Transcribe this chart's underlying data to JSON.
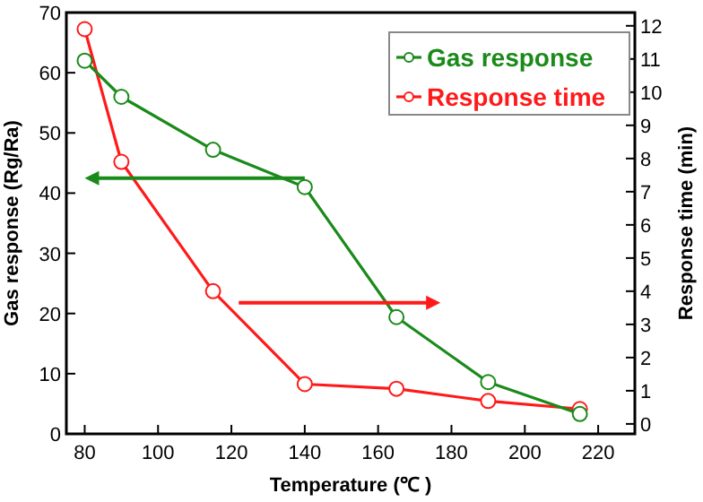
{
  "chart_data": {
    "type": "line",
    "xlabel": "Temperature (℃ )",
    "ylabel": "Gas response (Rg/Ra)",
    "y2label": "Response time (min)",
    "x": [
      80,
      90,
      115,
      140,
      165,
      190,
      215
    ],
    "series": [
      {
        "name": "Gas response",
        "color": "#1a8a1a",
        "values": [
          62,
          56,
          47.2,
          41,
          19.4,
          8.6,
          3.3
        ]
      },
      {
        "name": "Response time",
        "color": "#ff1a1a",
        "axis": "y2",
        "values": [
          11.9,
          7.9,
          4.0,
          1.2,
          1.06,
          0.69,
          0.45
        ]
      }
    ],
    "xlim": [
      75,
      230
    ],
    "xticks": [
      80,
      100,
      120,
      140,
      160,
      180,
      200,
      220
    ],
    "ylim": [
      0,
      70
    ],
    "yticks": [
      0,
      10,
      20,
      30,
      40,
      50,
      60,
      70
    ],
    "y2lim": [
      -0.3,
      12.4
    ],
    "y2ticks": [
      0,
      1,
      2,
      3,
      4,
      5,
      6,
      7,
      8,
      9,
      10,
      11,
      12
    ],
    "marker": "circle",
    "line_style": "solid",
    "legend": "top right",
    "grid": false
  }
}
